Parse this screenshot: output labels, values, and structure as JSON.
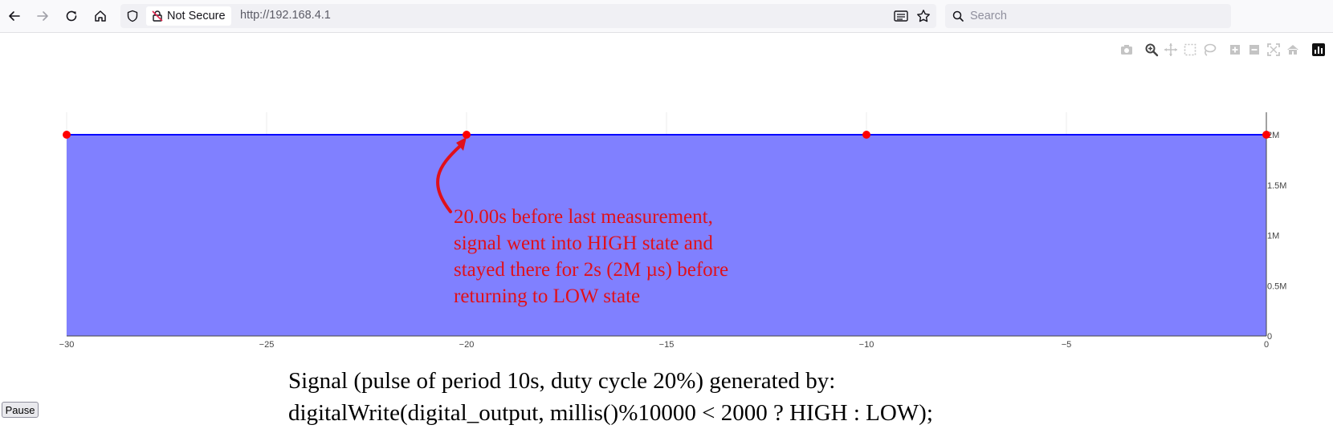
{
  "browser": {
    "security_label": "Not Secure",
    "url": "http://192.168.4.1",
    "search_placeholder": "Search",
    "icons": [
      "back-icon",
      "forward-icon",
      "reload-icon",
      "home-icon",
      "shield-icon",
      "not-secure-lock-icon",
      "reader-mode-icon",
      "bookmark-star-icon",
      "search-icon"
    ]
  },
  "modebar": {
    "icons": [
      "camera-icon",
      "zoom-icon",
      "pan-icon",
      "box-select-icon",
      "lasso-select-icon",
      "zoom-in-icon",
      "zoom-out-icon",
      "autoscale-icon",
      "reset-axes-icon",
      "plotly-logo-icon"
    ]
  },
  "chart_data": {
    "type": "area",
    "x": [
      -30,
      -20,
      -10,
      0
    ],
    "y": [
      2000000,
      2000000,
      2000000,
      2000000
    ],
    "xlim": [
      -30,
      0
    ],
    "ylim": [
      0,
      2000000
    ],
    "x_ticks": [
      "−30",
      "−25",
      "−20",
      "−15",
      "−10",
      "−5",
      "0"
    ],
    "x_tick_values": [
      -30,
      -25,
      -20,
      -15,
      -10,
      -5,
      0
    ],
    "y_ticks": [
      "0",
      "0.5M",
      "1M",
      "1.5M",
      "2M"
    ],
    "y_tick_values": [
      0,
      500000,
      1000000,
      1500000,
      2000000
    ],
    "y_axis_side": "right",
    "grid": true,
    "colors": {
      "fill": "#8080ff",
      "line": "#0000ff",
      "marker": "#ff0000",
      "annotation": "#e0101a"
    },
    "annotation": {
      "x": -20,
      "y": 2000000,
      "lines": [
        "20.00s before last measurement,",
        "signal went into HIGH state and",
        "stayed there for 2s (2M µs) before",
        "returning to LOW state"
      ]
    }
  },
  "caption": {
    "line1": "Signal (pulse of period 10s, duty cycle 20%) generated by:",
    "line2": "digitalWrite(digital_output, millis()%10000 < 2000 ? HIGH : LOW);"
  },
  "controls": {
    "pause_label": "Pause"
  }
}
